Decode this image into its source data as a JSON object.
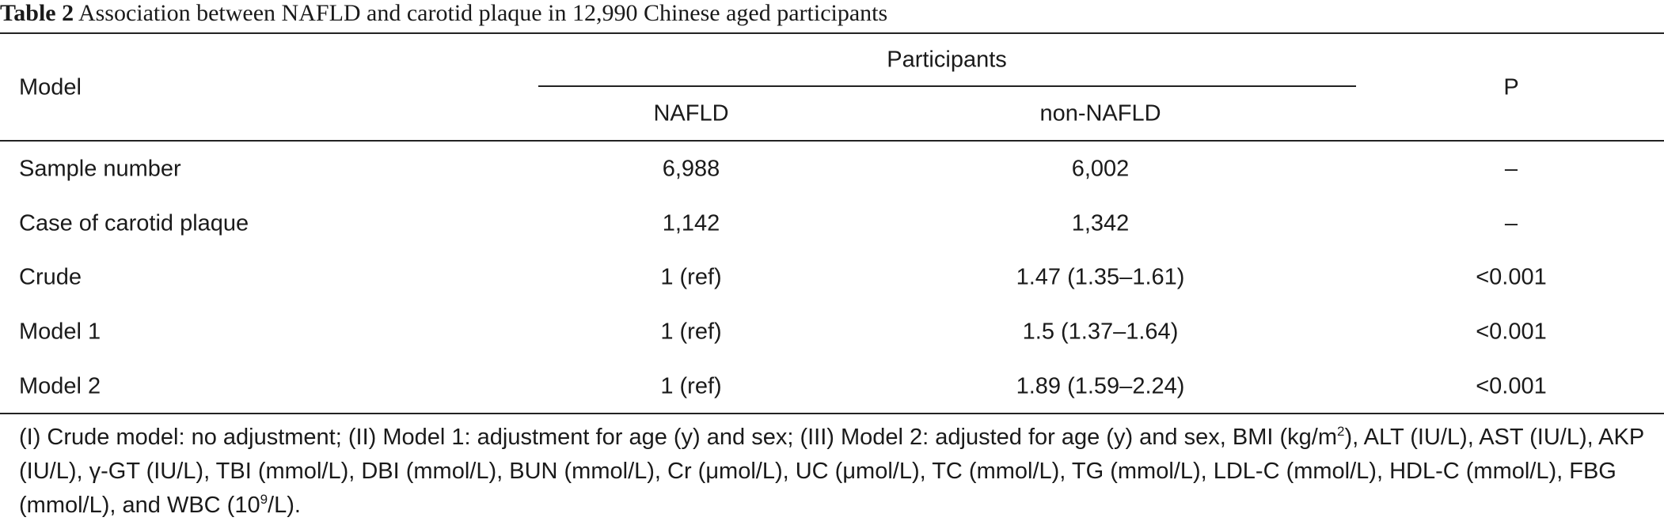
{
  "title": {
    "label": "Table 2",
    "text": "Association between NAFLD and carotid plaque in 12,990 Chinese aged participants"
  },
  "table": {
    "header": {
      "model": "Model",
      "group": "Participants",
      "columns": [
        "NAFLD",
        "non-NAFLD"
      ],
      "p": "P"
    },
    "rows": [
      [
        "Sample number",
        "6,988",
        "6,002",
        "–"
      ],
      [
        "Case of carotid plaque",
        "1,142",
        "1,342",
        "–"
      ],
      [
        "Crude",
        "1 (ref)",
        "1.47 (1.35–1.61)",
        "<0.001"
      ],
      [
        "Model 1",
        "1 (ref)",
        "1.5 (1.37–1.64)",
        "<0.001"
      ],
      [
        "Model 2",
        "1 (ref)",
        "1.89 (1.59–2.24)",
        "<0.001"
      ]
    ]
  },
  "footnote": {
    "parts": [
      "(I) Crude model: no adjustment; (II) Model 1: adjustment for age (y) and sex; (III) Model 2: adjusted for age (y) and sex, BMI (kg/m",
      "2",
      "), ALT (IU/L), AST (IU/L), AKP (IU/L), γ-GT (IU/L), TBI (mmol/L), DBI (mmol/L), BUN (mmol/L), Cr (μmol/L), UC (μmol/L), TC (mmol/L), TG (mmol/L), LDL-C (mmol/L), HDL-C (mmol/L), FBG (mmol/L), and WBC (10",
      "9",
      "/L)."
    ]
  }
}
